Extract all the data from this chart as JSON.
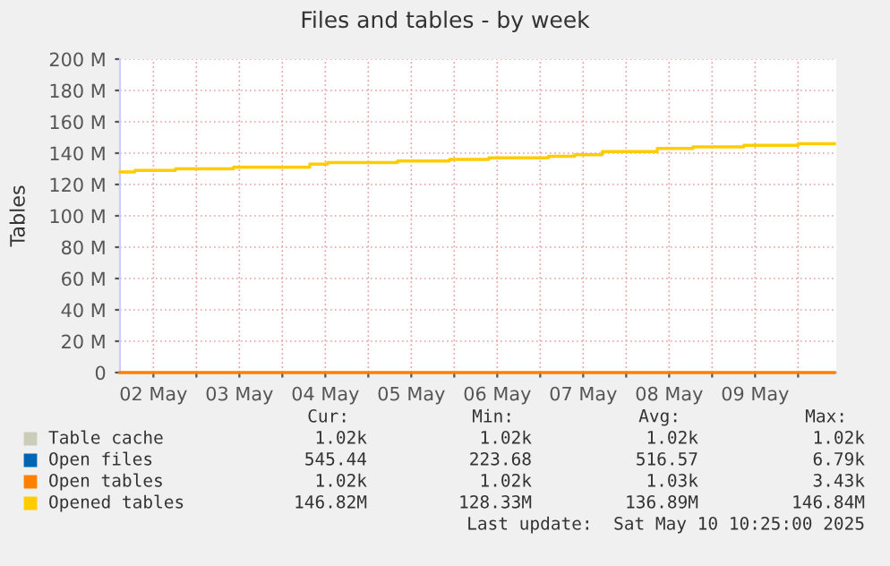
{
  "chart_data": {
    "type": "step",
    "title": "Files and tables - by week",
    "ylabel": "Tables",
    "xlim": [
      "2025-05-02T02:40",
      "2025-05-10T10:40"
    ],
    "xticks": [
      {
        "value": "2025-05-02T12:00",
        "label": "02 May"
      },
      {
        "value": "2025-05-03T00:00",
        "label": null
      },
      {
        "value": "2025-05-03T12:00",
        "label": "03 May"
      },
      {
        "value": "2025-05-04T00:00",
        "label": null
      },
      {
        "value": "2025-05-04T12:00",
        "label": "04 May"
      },
      {
        "value": "2025-05-05T00:00",
        "label": null
      },
      {
        "value": "2025-05-05T12:00",
        "label": "05 May"
      },
      {
        "value": "2025-05-06T00:00",
        "label": null
      },
      {
        "value": "2025-05-06T12:00",
        "label": "06 May"
      },
      {
        "value": "2025-05-07T00:00",
        "label": null
      },
      {
        "value": "2025-05-07T12:00",
        "label": "07 May"
      },
      {
        "value": "2025-05-08T00:00",
        "label": null
      },
      {
        "value": "2025-05-08T12:00",
        "label": "08 May"
      },
      {
        "value": "2025-05-09T00:00",
        "label": null
      },
      {
        "value": "2025-05-09T12:00",
        "label": "09 May"
      },
      {
        "value": "2025-05-10T00:00",
        "label": null
      }
    ],
    "ylim": [
      0,
      200000000
    ],
    "yticks": [
      0,
      {
        "value": 20000000,
        "label": "20 M"
      },
      {
        "value": 40000000,
        "label": "40 M"
      },
      {
        "value": 60000000,
        "label": "60 M"
      },
      {
        "value": 80000000,
        "label": "80 M"
      },
      {
        "value": 100000000,
        "label": "100 M"
      },
      {
        "value": 120000000,
        "label": "120 M"
      },
      {
        "value": 140000000,
        "label": "140 M"
      },
      {
        "value": 160000000,
        "label": "160 M"
      },
      {
        "value": 180000000,
        "label": "180 M"
      },
      {
        "value": 200000000,
        "label": "200 M"
      }
    ],
    "grid": true,
    "legend": "bottom",
    "series": [
      {
        "name": "Table cache",
        "color": "#ccccbb",
        "values": [
          null,
          null
        ]
      },
      {
        "name": "Open files",
        "color": "#0066b3",
        "values": [
          null,
          null
        ]
      },
      {
        "name": "Open tables",
        "color": "#ff8000",
        "x": [
          "2025-05-02T02:40",
          "2025-05-10T10:10"
        ],
        "values": [
          0,
          0
        ]
      },
      {
        "name": "Opened tables",
        "color": "#ffcc00",
        "x": [
          "2025-05-02T02:40",
          "2025-05-02T06:50",
          "2025-05-02T18:10",
          "2025-05-03T10:20",
          "2025-05-04T07:40",
          "2025-05-04T12:40",
          "2025-05-05T08:10",
          "2025-05-05T22:40",
          "2025-05-06T09:40",
          "2025-05-07T02:20",
          "2025-05-07T09:40",
          "2025-05-07T17:20",
          "2025-05-08T08:40",
          "2025-05-08T18:40",
          "2025-05-09T08:50",
          "2025-05-10T00:00",
          "2025-05-10T10:10"
        ],
        "values": [
          128000000,
          129000000,
          130000000,
          131000000,
          133000000,
          134000000,
          135000000,
          136000000,
          137000000,
          138000000,
          139000000,
          141000000,
          143000000,
          144000000,
          145000000,
          146000000,
          146000000
        ]
      }
    ],
    "annotations": [
      "Cur:",
      "Min:",
      "Avg:",
      "Max:",
      "1.02k",
      "1.02k",
      "1.02k",
      "1.02k",
      "545.44",
      "223.68",
      "516.57",
      "6.79k",
      "1.02k",
      "1.02k",
      "1.03k",
      "3.43k",
      "146.82M",
      "128.33M",
      "136.89M",
      "146.84M",
      "Last update:  Sat May 10 10:25:00 2025"
    ]
  }
}
